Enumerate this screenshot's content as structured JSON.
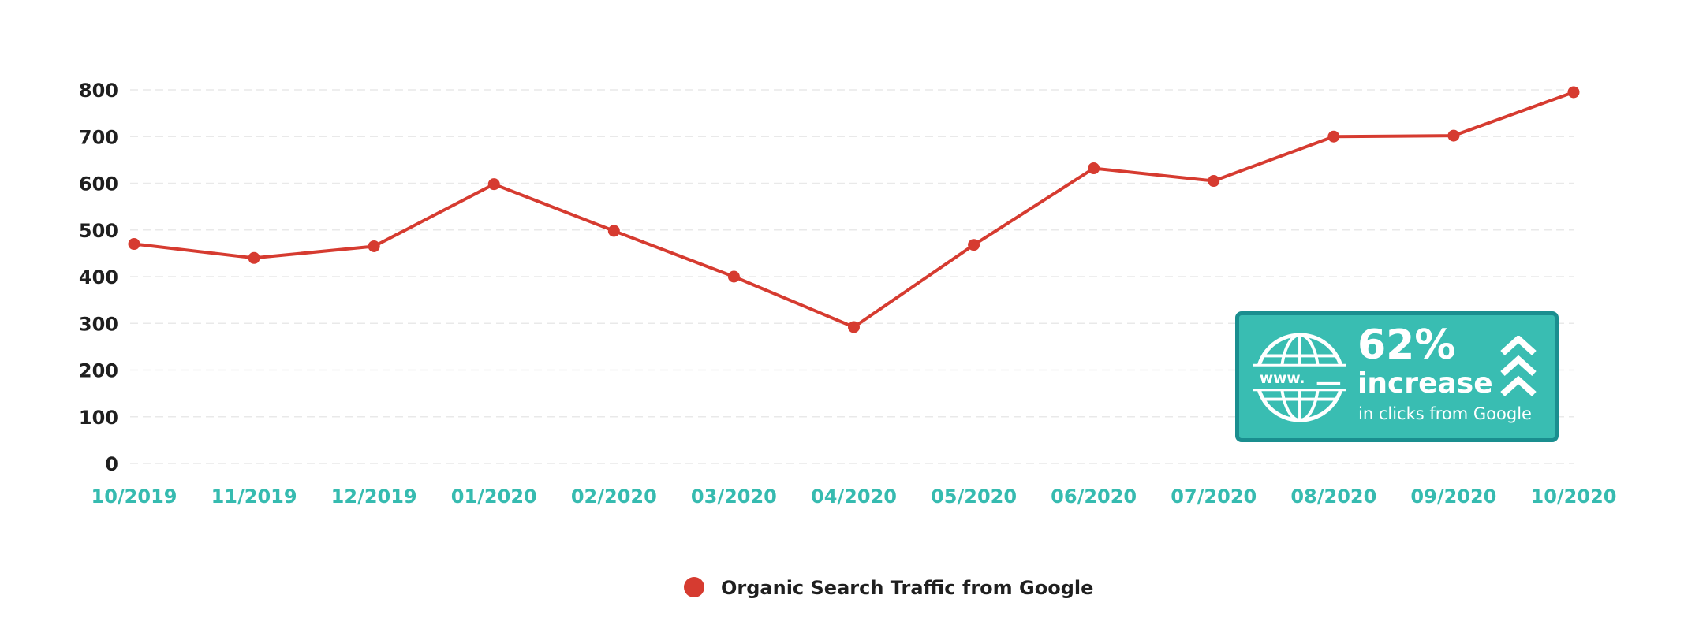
{
  "colors": {
    "series": "#d63b30",
    "x_tick": "#36bbb0",
    "y_tick": "#1f1f1f",
    "callout_fill": "#39bdb2",
    "callout_border": "#1a8e8f",
    "callout_text": "#ffffff"
  },
  "chart_data": {
    "type": "line",
    "title": "",
    "xlabel": "",
    "ylabel": "",
    "categories": [
      "10/2019",
      "11/2019",
      "12/2019",
      "01/2020",
      "02/2020",
      "03/2020",
      "04/2020",
      "05/2020",
      "06/2020",
      "07/2020",
      "08/2020",
      "09/2020",
      "10/2020"
    ],
    "y_ticks": [
      0,
      100,
      200,
      300,
      400,
      500,
      600,
      700,
      800
    ],
    "ylim": [
      0,
      800
    ],
    "grid": true,
    "legend_position": "bottom-center",
    "series": [
      {
        "name": "Organic Search Traffic from Google",
        "values": [
          470,
          440,
          465,
          598,
          498,
          400,
          292,
          468,
          632,
          605,
          700,
          702,
          795
        ]
      }
    ]
  },
  "callout": {
    "icon": "globe-www-icon",
    "arrow_icon": "triple-chevron-up-icon",
    "globe_text": "www.",
    "percent": "62%",
    "word": "increase",
    "subtext": "in clicks from Google"
  }
}
